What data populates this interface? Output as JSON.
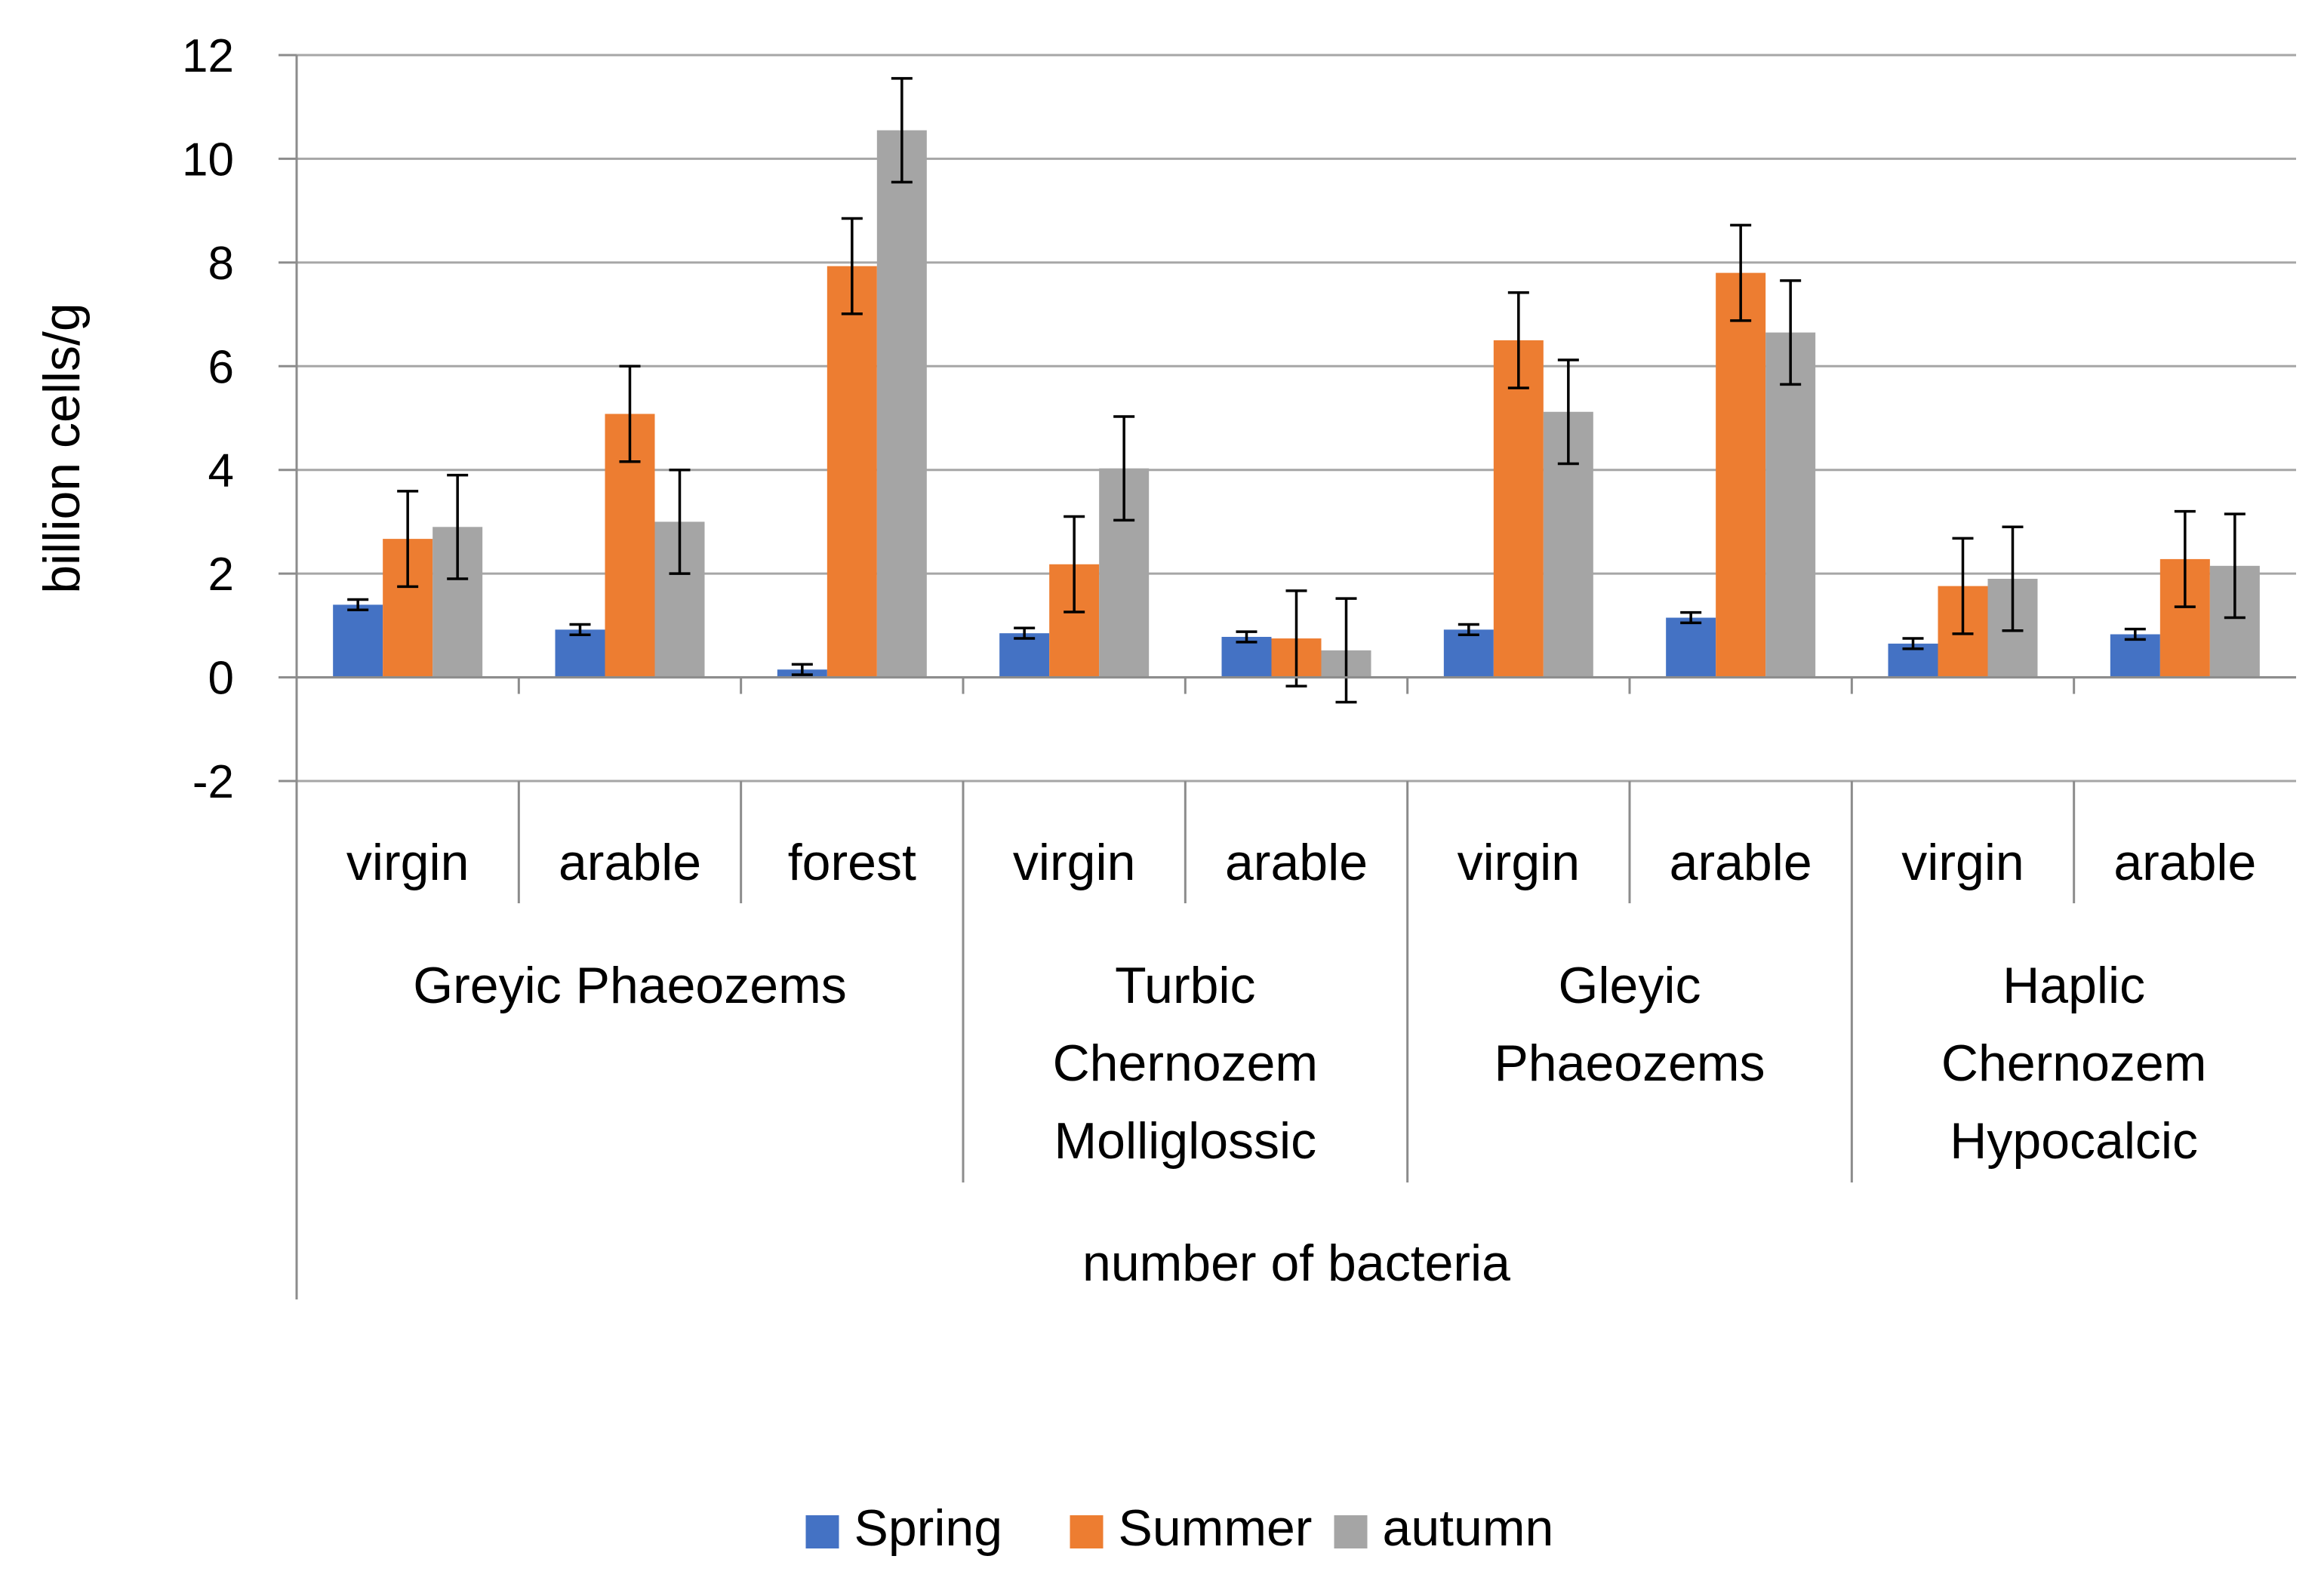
{
  "chart_data": {
    "type": "bar",
    "title": "",
    "ylabel": "billion cells/g",
    "xlabel": "number of bacteria",
    "ylim": [
      -2,
      12
    ],
    "ytick_step": 2,
    "grid": true,
    "legend_position": "bottom",
    "groups": [
      {
        "label": "Greyic Phaeozems",
        "label_lines": [
          "Greyic Phaeozems"
        ],
        "categories": [
          "virgin",
          "arable",
          "forest"
        ]
      },
      {
        "label": "Turbic Chernozem Molliglossic",
        "label_lines": [
          "Turbic",
          "Chernozem",
          "Molliglossic"
        ],
        "categories": [
          "virgin",
          "arable"
        ]
      },
      {
        "label": "Gleyic Phaeozems",
        "label_lines": [
          "Gleyic",
          "Phaeozems"
        ],
        "categories": [
          "virgin",
          "arable"
        ]
      },
      {
        "label": "Haplic Chernozem Hypocalcic",
        "label_lines": [
          "Haplic",
          "Chernozem",
          "Hypocalcic"
        ],
        "categories": [
          "virgin",
          "arable"
        ]
      }
    ],
    "categories": [
      "virgin",
      "arable",
      "forest",
      "virgin",
      "arable",
      "virgin",
      "arable",
      "virgin",
      "arable"
    ],
    "series": [
      {
        "name": "Spring",
        "color": "#4472c4",
        "values": [
          1.4,
          0.92,
          0.15,
          0.85,
          0.78,
          0.92,
          1.15,
          0.65,
          0.83
        ],
        "errors": [
          0.1,
          0.1,
          0.1,
          0.1,
          0.1,
          0.1,
          0.1,
          0.1,
          0.1
        ]
      },
      {
        "name": "Summer",
        "color": "#ed7d31",
        "values": [
          2.67,
          5.08,
          7.93,
          2.18,
          0.75,
          6.5,
          7.8,
          1.76,
          2.28
        ],
        "errors": [
          0.92,
          0.92,
          0.92,
          0.92,
          0.92,
          0.92,
          0.92,
          0.92,
          0.92
        ]
      },
      {
        "name": "autumn",
        "color": "#a5a5a5",
        "values": [
          2.9,
          3.0,
          10.55,
          4.03,
          0.52,
          5.12,
          6.65,
          1.9,
          2.15
        ],
        "errors": [
          1.0,
          1.0,
          1.0,
          1.0,
          1.0,
          1.0,
          1.0,
          1.0,
          1.0
        ]
      }
    ]
  }
}
